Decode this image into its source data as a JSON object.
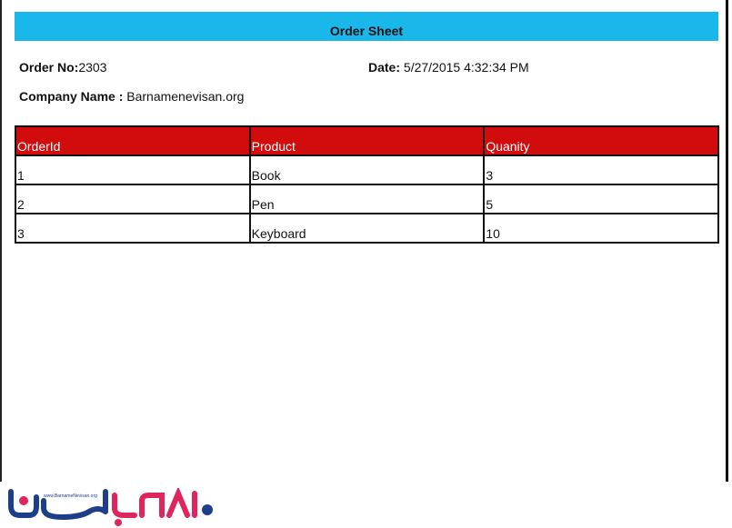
{
  "title": "Order Sheet",
  "order_no_label": "Order No:",
  "order_no": "2303",
  "date_label": "Date:",
  "date": "5/27/2015 4:32:34 PM",
  "company_label": "Company Name :",
  "company": "Barnamenevisan.org",
  "table": {
    "headers": [
      "OrderId",
      "Product",
      "Quanity"
    ],
    "rows": [
      [
        "1",
        "Book",
        "3"
      ],
      [
        "2",
        "Pen",
        "5"
      ],
      [
        "3",
        "Keyboard",
        "10"
      ]
    ]
  },
  "logo": {
    "url_text": "www.BarnameNevisan.org",
    "colors": {
      "blue": "#1d3f8a",
      "red": "#e0245e"
    }
  },
  "colors": {
    "title_bar": "#1ab7ea",
    "table_header": "#d20c0c"
  }
}
